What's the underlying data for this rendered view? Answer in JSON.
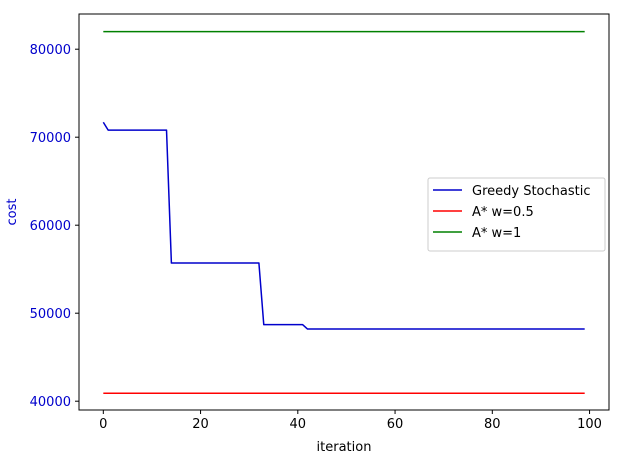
{
  "chart_data": {
    "type": "line",
    "xlabel": "iteration",
    "ylabel": "cost",
    "xlim": [
      -5,
      104
    ],
    "ylim": [
      39000,
      84000
    ],
    "xticks": [
      0,
      20,
      40,
      60,
      80,
      100
    ],
    "yticks": [
      40000,
      50000,
      60000,
      70000,
      80000
    ],
    "ytick_color": "#0000cc",
    "ylabel_color": "#0000cc",
    "grid": false,
    "legend_position": "center-right",
    "series": [
      {
        "name": "Greedy Stochastic",
        "color": "#0000cc",
        "points": [
          [
            0,
            71700
          ],
          [
            1,
            70800
          ],
          [
            13,
            70800
          ],
          [
            14,
            55700
          ],
          [
            32,
            55700
          ],
          [
            33,
            48700
          ],
          [
            41,
            48700
          ],
          [
            42,
            48200
          ],
          [
            99,
            48200
          ]
        ]
      },
      {
        "name": "A* w=0.5",
        "color": "#ff0000",
        "points": [
          [
            0,
            40900
          ],
          [
            99,
            40900
          ]
        ]
      },
      {
        "name": "A* w=1",
        "color": "#008000",
        "points": [
          [
            0,
            82000
          ],
          [
            99,
            82000
          ]
        ]
      }
    ]
  }
}
